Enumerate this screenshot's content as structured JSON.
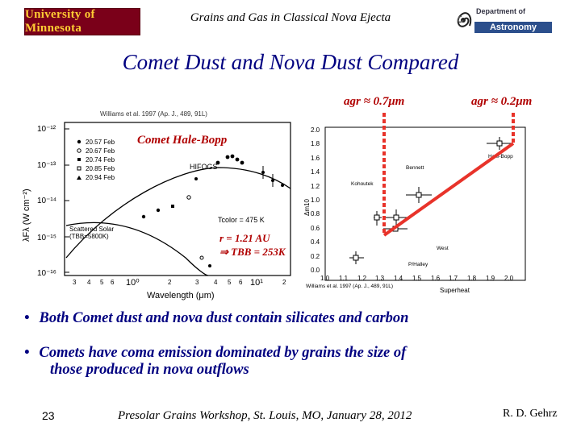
{
  "header": {
    "university_logo_text": "University of Minnesota",
    "title": "Grains and Gas in Classical Nova Ejecta",
    "dept_line1": "Department of",
    "dept_name": "Astronomy"
  },
  "slide_title": "Comet Dust and Nova Dust Compared",
  "annotations": {
    "agr_left": "agr ≈ 0.7μm",
    "agr_right": "agr ≈ 0.2μm",
    "comet_label": "Comet Hale-Bopp",
    "r_label": "r = 1.21 AU",
    "tbb_label": "⇒ TBB = 253K"
  },
  "left_plot": {
    "citation": "Williams et al. 1997 (Ap. J., 489, 91L)",
    "ylabel": "λFλ (W cm⁻²)",
    "xlabel": "Wavelength (μm)",
    "yticks": [
      "10⁻¹²",
      "10⁻¹³",
      "10⁻¹⁴",
      "10⁻¹⁵",
      "10⁻¹⁶"
    ],
    "xticks_major": [
      "10⁰",
      "10¹"
    ],
    "xticks_minor": [
      "3",
      "4",
      "5",
      "6",
      "2",
      "3",
      "4",
      "5",
      "6",
      "2"
    ],
    "legend": [
      "20.57 Feb",
      "20.67 Feb",
      "20.74 Feb",
      "20.85 Feb",
      "20.94 Feb"
    ],
    "label_hifogs": "HIFOGS",
    "label_tcolor": "Tcolor = 475 K",
    "label_scattered": "Scattered Solar (TBB=5800K)"
  },
  "right_plot": {
    "citation": "Williams et al. 1997 (Ap. J., 489, 91L)",
    "ylabel": "Δm10",
    "xlabel": "Superheat",
    "yticks": [
      "2.0",
      "1.8",
      "1.6",
      "1.4",
      "1.2",
      "1.0",
      "0.8",
      "0.6",
      "0.4",
      "0.2",
      "0.0"
    ],
    "xticks": [
      "1.0",
      "1.1",
      "1.2",
      "1.3",
      "1.4",
      "1.5",
      "1.6",
      "1.7",
      "1.8",
      "1.9",
      "2.0"
    ],
    "comet_labels": [
      "Hale-Bopp",
      "Bennett",
      "Kohoutek",
      "West",
      "P/Halley"
    ]
  },
  "bullets": [
    "Both Comet dust and nova dust contain silicates and carbon",
    "Comets have coma emission dominated by grains the size of",
    "those produced in nova outflows"
  ],
  "footer": {
    "slide_number": "23",
    "center": "Presolar Grains Workshop, St. Louis, MO, January 28, 2012",
    "author": "R. D. Gehrz"
  },
  "colors": {
    "umn_maroon": "#7a0019",
    "umn_gold": "#ffcc33",
    "title_navy": "#000080",
    "annotation_red": "#b00000",
    "guide_red": "#e8332a",
    "astronomy_blue": "#2c4f8c"
  }
}
